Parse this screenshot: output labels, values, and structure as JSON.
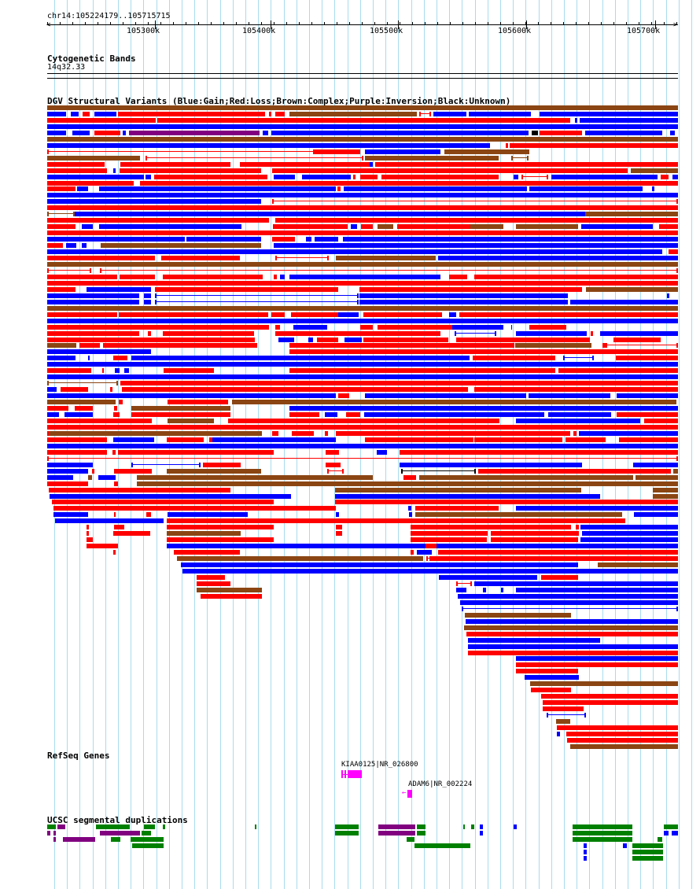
{
  "position": "chr14:105224179..105715715",
  "ruler": {
    "ticks": [
      "105300k",
      "105400k",
      "105500k",
      "105600k",
      "105700k"
    ]
  },
  "tracks": {
    "cytoband": {
      "title": "Cytogenetic Bands",
      "band": "14q32.33"
    },
    "dgv": {
      "title": "DGV Structural Variants (Blue:Gain;Red:Loss;Brown:Complex;Purple:Inversion;Black:Unknown)"
    },
    "refseq": {
      "title": "RefSeq Genes",
      "genes": [
        {
          "label": "KIAA0125|NR_026800"
        },
        {
          "label": "ADAM6|NR_002224"
        }
      ]
    },
    "segdup": {
      "title": "UCSC segmental duplications"
    }
  },
  "colors": {
    "gain": "#0000ff",
    "loss": "#ff0000",
    "complex": "#8b4513",
    "inversion": "#800080",
    "unknown": "#000000",
    "gene": "#ff00ff",
    "segdup_green": "#008000",
    "segdup_purple": "#800080",
    "segdup_blue": "#0000ff",
    "grid": "#a8dced"
  }
}
